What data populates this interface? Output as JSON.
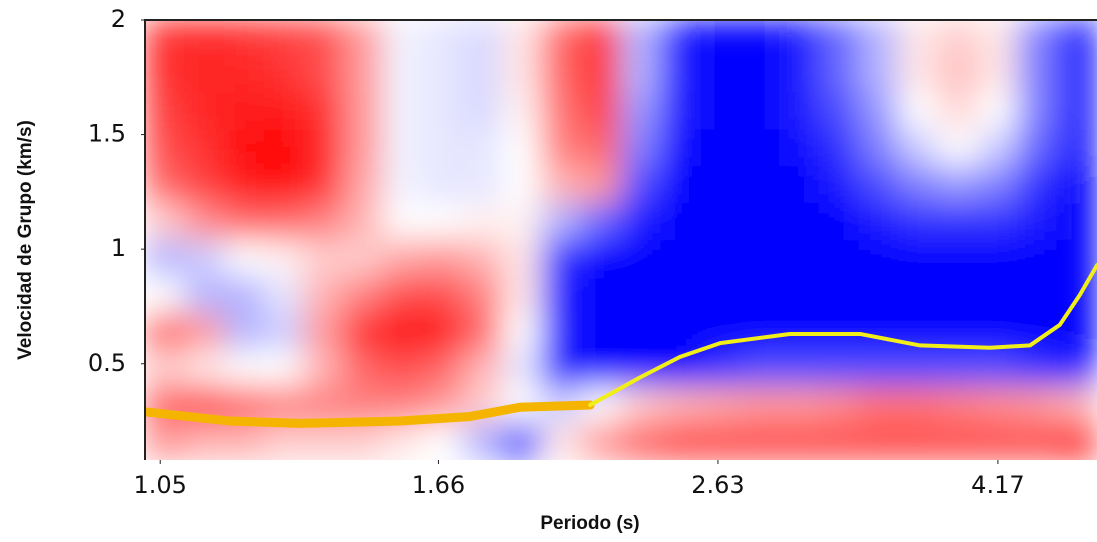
{
  "chart_data": {
    "type": "heatmap",
    "x_label": "Periodo (s)",
    "y_label": "Velocidad de Grupo (km/s)",
    "xscale": "log",
    "xlim": [
      1.024,
      4.909
    ],
    "ylim": [
      0.08,
      2
    ],
    "xticks": [
      1.05,
      1.66,
      2.63,
      4.17
    ],
    "yticks": [
      0.5,
      1,
      1.5,
      2
    ],
    "z": [
      [
        0.8,
        0.85,
        0.8,
        0.75,
        0.7,
        0.4,
        -0.05,
        -0.1,
        -0.15,
        0.1,
        0.6,
        0.8,
        -0.3,
        -0.9,
        -1,
        -1,
        -0.9,
        -0.6,
        -0.3,
        0.1,
        0.2,
        0.1,
        -0.5,
        -0.9
      ],
      [
        0.8,
        0.85,
        0.85,
        0.8,
        0.7,
        0.4,
        -0.05,
        -0.1,
        -0.15,
        0.1,
        0.6,
        0.8,
        -0.3,
        -0.9,
        -1,
        -1,
        -0.9,
        -0.6,
        -0.3,
        0.1,
        0.25,
        0.1,
        -0.5,
        -0.9
      ],
      [
        0.75,
        0.85,
        0.9,
        0.9,
        0.8,
        0.4,
        -0.05,
        -0.1,
        -0.15,
        0.05,
        0.55,
        0.75,
        -0.4,
        -0.9,
        -1,
        -1,
        -0.9,
        -0.7,
        -0.4,
        0,
        0.15,
        0,
        -0.5,
        -0.9
      ],
      [
        0.7,
        0.8,
        0.95,
        1,
        0.85,
        0.4,
        -0.05,
        -0.1,
        -0.1,
        0,
        0.5,
        0.6,
        -0.5,
        -0.95,
        -1,
        -1,
        -0.95,
        -0.8,
        -0.5,
        -0.2,
        0,
        -0.2,
        -0.6,
        -0.9
      ],
      [
        0.6,
        0.75,
        0.9,
        0.95,
        0.8,
        0.35,
        -0.05,
        -0.1,
        -0.1,
        0,
        0.3,
        0.4,
        -0.7,
        -1,
        -1,
        -1,
        -1,
        -0.9,
        -0.7,
        -0.5,
        -0.4,
        -0.5,
        -0.8,
        -1
      ],
      [
        0.2,
        0.45,
        0.6,
        0.6,
        0.5,
        0.3,
        0,
        0,
        0.05,
        0.05,
        -0.3,
        -0.6,
        -0.9,
        -1,
        -1,
        -1,
        -1,
        -1,
        -0.9,
        -0.8,
        -0.8,
        -0.8,
        -0.9,
        -1
      ],
      [
        -0.3,
        -0.2,
        0,
        0.05,
        0.2,
        0.2,
        0.35,
        0.4,
        0.3,
        0.1,
        -0.8,
        -1,
        -1,
        -1,
        -1,
        -1,
        -1,
        -1,
        -1,
        -1,
        -1,
        -1,
        -1,
        -1
      ],
      [
        0,
        -0.3,
        -0.3,
        -0.1,
        0.3,
        0.5,
        0.7,
        0.7,
        0.5,
        0.1,
        -0.9,
        -1,
        -1,
        -1,
        -1,
        -1,
        -1,
        -1,
        -1,
        -1,
        -1,
        -1,
        -1,
        -1
      ],
      [
        0.6,
        0.4,
        -0.3,
        -0.2,
        0.4,
        0.8,
        0.95,
        0.9,
        0.6,
        0,
        -0.9,
        -1,
        -1,
        -1,
        -1,
        -1,
        -1,
        -1,
        -1,
        -1,
        -1,
        -1,
        -1,
        -1
      ],
      [
        0.2,
        0.1,
        0,
        0,
        0.3,
        0.6,
        0.7,
        0.6,
        0.3,
        -0.1,
        -0.9,
        -1,
        -1,
        -1,
        -0.8,
        -0.7,
        -0.7,
        -0.7,
        -0.7,
        -0.7,
        -0.7,
        -0.7,
        -0.8,
        -0.9
      ],
      [
        0.6,
        0.7,
        0.6,
        0.5,
        0.5,
        0.5,
        0.5,
        0.4,
        0.2,
        0,
        -0.2,
        0,
        0.2,
        0.3,
        0.35,
        0.4,
        0.4,
        0.45,
        0.55,
        0.55,
        0.5,
        0.45,
        0.4,
        0.3
      ],
      [
        0.4,
        0.3,
        0.3,
        0.2,
        0.2,
        0.2,
        0.1,
        0,
        -0.3,
        -0.7,
        0.1,
        0.4,
        0.6,
        0.7,
        0.7,
        0.7,
        0.7,
        0.7,
        0.7,
        0.7,
        0.7,
        0.7,
        0.7,
        0.8
      ]
    ],
    "colors": [
      "#0000ff",
      "#ffffff",
      "#ff0000"
    ],
    "series": [
      {
        "color": "#f5b400",
        "x": [
          1.024,
          1.178,
          1.322,
          1.558,
          1.749,
          1.898,
          2.131
        ],
        "values": [
          0.29,
          0.25,
          0.24,
          0.25,
          0.27,
          0.31,
          0.32
        ]
      },
      {
        "color": "#f2ee1a",
        "x": [
          2.131,
          2.313,
          2.471,
          2.64,
          2.961,
          3.323,
          3.668,
          4.116,
          4.396,
          4.618,
          4.772,
          4.909
        ],
        "values": [
          0.32,
          0.44,
          0.53,
          0.59,
          0.63,
          0.63,
          0.58,
          0.57,
          0.58,
          0.67,
          0.8,
          0.93
        ]
      }
    ]
  }
}
